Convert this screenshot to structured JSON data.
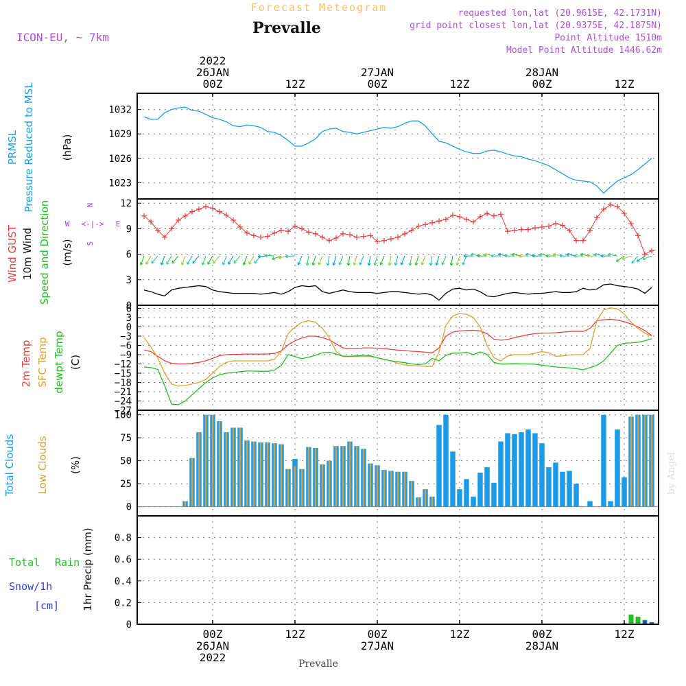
{
  "header": {
    "title": "Forecast Meteogram",
    "location": "Prevalle",
    "model": "ICON-EU, ~ 7km",
    "requested": "requested lon,lat (20.9615E, 42.1731N)",
    "gridpoint": "grid point closest lon,lat (20.9375E, 42.1875N)",
    "point_alt": "Point Altitude 1510m",
    "model_alt": "Model Point Altitude 1446.62m"
  },
  "time_axis": {
    "top": [
      {
        "h": 0,
        "lines": [
          "2022",
          "26JAN",
          "00Z"
        ]
      },
      {
        "h": 12,
        "lines": [
          "12Z"
        ]
      },
      {
        "h": 24,
        "lines": [
          "27JAN",
          "00Z"
        ]
      },
      {
        "h": 36,
        "lines": [
          "12Z"
        ]
      },
      {
        "h": 48,
        "lines": [
          "28JAN",
          "00Z"
        ]
      },
      {
        "h": 60,
        "lines": [
          "12Z"
        ]
      }
    ],
    "bottom": [
      {
        "h": 0,
        "lines": [
          "00Z",
          "26JAN",
          "2022"
        ]
      },
      {
        "h": 12,
        "lines": [
          "12Z"
        ]
      },
      {
        "h": 24,
        "lines": [
          "00Z",
          "27JAN"
        ]
      },
      {
        "h": 36,
        "lines": [
          "12Z"
        ]
      },
      {
        "h": 48,
        "lines": [
          "00Z",
          "28JAN"
        ]
      },
      {
        "h": 60,
        "lines": [
          "12Z"
        ]
      }
    ],
    "bottom_location": "Prevalle",
    "range_hours": [
      -11,
      65
    ]
  },
  "watermark": "by Angel",
  "colors": {
    "pressure": "#1e9be6",
    "gust": "#e83c3c",
    "wind": "#000000",
    "temp2m": "#e8413c",
    "sfctemp": "#e0a030",
    "dewpt": "#22c022",
    "total_clouds": "#1e9be6",
    "low_clouds": "#d6a040",
    "rain": "#22c022",
    "snow": "#3040e0",
    "compass": "#a040e0",
    "title": "#f5c070",
    "info": "#b050d8"
  },
  "chart_data": [
    {
      "type": "line",
      "panel": "pressure",
      "labels": [
        "PRMSL",
        "Pressure Reduced to MSL",
        "(hPa)"
      ],
      "ylim": [
        1021,
        1034
      ],
      "yticks": [
        1023,
        1026,
        1029,
        1032
      ],
      "x": [
        -10,
        -9,
        -8,
        -7,
        -6,
        -5,
        -4,
        -3,
        -2,
        -1,
        0,
        1,
        2,
        3,
        4,
        5,
        6,
        7,
        8,
        9,
        10,
        11,
        12,
        13,
        14,
        15,
        16,
        17,
        18,
        19,
        20,
        21,
        22,
        23,
        24,
        25,
        26,
        27,
        28,
        29,
        30,
        31,
        32,
        33,
        34,
        35,
        36,
        37,
        38,
        39,
        40,
        41,
        42,
        43,
        44,
        45,
        46,
        47,
        48,
        49,
        50,
        51,
        52,
        53,
        54,
        55,
        56,
        57,
        58,
        59,
        60,
        61,
        62,
        63,
        64
      ],
      "series": [
        {
          "values": [
            1031.1,
            1030.8,
            1030.8,
            1031.6,
            1032.0,
            1032.2,
            1032.3,
            1031.9,
            1031.8,
            1031.4,
            1031.0,
            1030.8,
            1030.5,
            1030.0,
            1029.9,
            1030.1,
            1030.0,
            1029.8,
            1029.3,
            1029.2,
            1028.8,
            1028.2,
            1027.5,
            1027.5,
            1027.9,
            1028.4,
            1029.3,
            1029.6,
            1029.7,
            1029.3,
            1029.2,
            1029.0,
            1029.2,
            1029.4,
            1029.6,
            1029.8,
            1029.7,
            1029.9,
            1030.3,
            1030.6,
            1030.6,
            1030.0,
            1029.0,
            1028.1,
            1027.9,
            1027.5,
            1027.1,
            1026.8,
            1026.6,
            1026.6,
            1026.9,
            1027.0,
            1026.8,
            1026.5,
            1026.3,
            1026.2,
            1025.9,
            1025.7,
            1025.4,
            1025.1,
            1024.6,
            1024.1,
            1023.6,
            1023.3,
            1023.2,
            1023.1,
            1022.6,
            1021.7,
            1022.5,
            1023.2,
            1023.6,
            1024.0,
            1024.6,
            1025.3,
            1026.0
          ]
        }
      ]
    },
    {
      "type": "line",
      "panel": "wind",
      "labels": [
        "Wind GUST",
        "10m Wind",
        "Speed and Direction",
        "(m/s)"
      ],
      "compass": {
        "n": "N",
        "s": "S",
        "e": "E",
        "w": "W"
      },
      "ylim": [
        0,
        12.5
      ],
      "yticks": [
        0,
        3,
        6,
        9,
        12
      ],
      "x": [
        -10,
        -9,
        -8,
        -7,
        -6,
        -5,
        -4,
        -3,
        -2,
        -1,
        0,
        1,
        2,
        3,
        4,
        5,
        6,
        7,
        8,
        9,
        10,
        11,
        12,
        13,
        14,
        15,
        16,
        17,
        18,
        19,
        20,
        21,
        22,
        23,
        24,
        25,
        26,
        27,
        28,
        29,
        30,
        31,
        32,
        33,
        34,
        35,
        36,
        37,
        38,
        39,
        40,
        41,
        42,
        43,
        44,
        45,
        46,
        47,
        48,
        49,
        50,
        51,
        52,
        53,
        54,
        55,
        56,
        57,
        58,
        59,
        60,
        61,
        62,
        63,
        64
      ],
      "series": [
        {
          "name": "gust",
          "values": [
            10.5,
            9.8,
            8.8,
            8.0,
            9.0,
            10.0,
            10.5,
            11.0,
            11.3,
            11.6,
            11.4,
            11.0,
            10.6,
            10.0,
            9.2,
            8.5,
            8.2,
            8.0,
            8.1,
            8.5,
            8.8,
            8.7,
            9.3,
            9.0,
            8.6,
            8.4,
            8.0,
            7.6,
            7.9,
            8.4,
            8.3,
            8.0,
            8.1,
            8.2,
            7.5,
            7.6,
            7.8,
            8.0,
            8.4,
            8.8,
            9.3,
            9.5,
            9.7,
            9.9,
            10.1,
            10.6,
            10.4,
            10.1,
            9.8,
            10.4,
            10.8,
            10.5,
            10.7,
            8.7,
            8.8,
            8.9,
            8.9,
            9.1,
            9.2,
            9.3,
            9.6,
            9.4,
            8.8,
            7.6,
            7.6,
            8.8,
            10.3,
            11.3,
            11.8,
            11.6,
            10.8,
            9.6,
            8.2,
            6.0,
            6.4
          ]
        },
        {
          "name": "wind10m",
          "values": [
            1.8,
            1.6,
            1.3,
            1.1,
            1.8,
            2.0,
            2.1,
            2.2,
            2.3,
            2.2,
            1.8,
            1.6,
            1.5,
            1.4,
            1.4,
            1.4,
            1.4,
            1.3,
            1.4,
            1.5,
            1.3,
            1.6,
            2.1,
            2.3,
            2.2,
            2.3,
            1.6,
            1.4,
            1.6,
            1.8,
            1.6,
            1.5,
            1.5,
            1.5,
            1.4,
            1.5,
            1.6,
            1.6,
            1.5,
            1.4,
            1.3,
            1.4,
            1.2,
            0.6,
            1.4,
            1.9,
            2.0,
            1.8,
            1.9,
            1.6,
            1.1,
            1.0,
            1.2,
            1.4,
            1.5,
            1.4,
            1.3,
            1.4,
            1.4,
            1.5,
            1.6,
            1.5,
            1.5,
            1.6,
            2.0,
            1.8,
            1.9,
            2.4,
            2.5,
            2.3,
            2.2,
            2.1,
            1.9,
            1.4,
            2.1
          ]
        }
      ]
    },
    {
      "type": "line",
      "panel": "temperature",
      "labels": [
        "2m Temp",
        "SFC Temp",
        "dewpt Temp",
        "(C)"
      ],
      "ylim": [
        -27,
        7
      ],
      "yticks": [
        6,
        3,
        0,
        -3,
        -6,
        -9,
        -12,
        -15,
        -18,
        -21,
        -24,
        -27
      ],
      "x": [
        -10,
        -9,
        -8,
        -7,
        -6,
        -5,
        -4,
        -3,
        -2,
        -1,
        0,
        1,
        2,
        3,
        4,
        5,
        6,
        7,
        8,
        9,
        10,
        11,
        12,
        13,
        14,
        15,
        16,
        17,
        18,
        19,
        20,
        21,
        22,
        23,
        24,
        25,
        26,
        27,
        28,
        29,
        30,
        31,
        32,
        33,
        34,
        35,
        36,
        37,
        38,
        39,
        40,
        41,
        42,
        43,
        44,
        45,
        46,
        47,
        48,
        49,
        50,
        51,
        52,
        53,
        54,
        55,
        56,
        57,
        58,
        59,
        60,
        61,
        62,
        63,
        64
      ],
      "series": [
        {
          "name": "2m Temp",
          "values": [
            -7.5,
            -8.0,
            -9.5,
            -11.0,
            -11.8,
            -12.0,
            -12.0,
            -11.8,
            -11.5,
            -11.0,
            -10.2,
            -9.3,
            -9.0,
            -8.9,
            -8.9,
            -8.8,
            -8.8,
            -8.8,
            -8.8,
            -8.6,
            -7.8,
            -5.8,
            -4.5,
            -3.6,
            -3.0,
            -3.0,
            -3.5,
            -4.2,
            -5.5,
            -6.8,
            -7.0,
            -7.0,
            -6.8,
            -6.8,
            -6.9,
            -7.0,
            -7.3,
            -7.5,
            -7.7,
            -7.9,
            -8.0,
            -8.2,
            -8.4,
            -6.8,
            -3.0,
            -1.7,
            -1.3,
            -1.2,
            -1.1,
            -1.3,
            -2.2,
            -4.0,
            -4.3,
            -4.1,
            -3.5,
            -3.0,
            -2.5,
            -2.2,
            -2.0,
            -2.0,
            -1.9,
            -1.7,
            -1.5,
            -1.4,
            -1.5,
            -0.5,
            2.0,
            2.3,
            2.5,
            2.2,
            1.7,
            0.9,
            0.0,
            -1.2,
            -2.8
          ]
        },
        {
          "name": "SFC Temp",
          "values": [
            -3.5,
            -6.5,
            -10.0,
            -15.0,
            -18.5,
            -19.2,
            -19.0,
            -18.5,
            -18.0,
            -17.0,
            -15.0,
            -12.8,
            -11.5,
            -11.0,
            -11.0,
            -11.0,
            -11.0,
            -11.0,
            -11.0,
            -10.5,
            -8.0,
            -2.2,
            0.0,
            1.5,
            2.0,
            1.5,
            -0.5,
            -3.5,
            -8.0,
            -9.6,
            -9.6,
            -9.6,
            -9.6,
            -9.6,
            -10.0,
            -10.6,
            -11.0,
            -11.8,
            -12.3,
            -12.6,
            -12.6,
            -12.8,
            -12.8,
            -8.2,
            0.5,
            3.5,
            4.3,
            4.1,
            3.0,
            0.0,
            -6.0,
            -10.0,
            -11.0,
            -9.4,
            -9.0,
            -9.0,
            -9.0,
            -8.5,
            -8.0,
            -8.4,
            -9.5,
            -9.4,
            -9.1,
            -9.0,
            -9.0,
            -7.0,
            2.0,
            5.5,
            6.2,
            5.8,
            4.2,
            1.5,
            -0.5,
            -2.0,
            -3.0
          ]
        },
        {
          "name": "dewpt Temp",
          "values": [
            -13.0,
            -13.2,
            -13.8,
            -19.0,
            -25.0,
            -25.2,
            -24.0,
            -22.0,
            -20.0,
            -18.0,
            -16.5,
            -15.5,
            -15.0,
            -14.8,
            -14.5,
            -14.3,
            -14.3,
            -14.4,
            -14.4,
            -14.0,
            -12.5,
            -9.0,
            -9.6,
            -10.3,
            -9.8,
            -9.2,
            -8.4,
            -8.2,
            -8.8,
            -9.5,
            -9.5,
            -9.4,
            -9.2,
            -9.4,
            -10.0,
            -10.5,
            -11.0,
            -11.3,
            -11.6,
            -12.0,
            -12.2,
            -12.0,
            -10.2,
            -11.0,
            -9.2,
            -8.5,
            -8.5,
            -8.2,
            -9.0,
            -8.1,
            -8.9,
            -11.5,
            -12.0,
            -12.0,
            -11.9,
            -12.0,
            -12.0,
            -12.1,
            -12.4,
            -12.7,
            -13.0,
            -13.1,
            -13.3,
            -13.5,
            -13.9,
            -13.2,
            -12.5,
            -11.0,
            -8.5,
            -6.0,
            -5.3,
            -5.2,
            -5.0,
            -4.5,
            -3.8
          ]
        }
      ]
    },
    {
      "type": "bar",
      "panel": "clouds",
      "labels": [
        "Total Clouds",
        "Low Clouds",
        "(%)"
      ],
      "ylim": [
        -10,
        105
      ],
      "yticks": [
        0,
        25,
        50,
        75,
        100
      ],
      "x": [
        -10,
        -9,
        -8,
        -7,
        -6,
        -5,
        -4,
        -3,
        -2,
        -1,
        0,
        1,
        2,
        3,
        4,
        5,
        6,
        7,
        8,
        9,
        10,
        11,
        12,
        13,
        14,
        15,
        16,
        17,
        18,
        19,
        20,
        21,
        22,
        23,
        24,
        25,
        26,
        27,
        28,
        29,
        30,
        31,
        32,
        33,
        34,
        35,
        36,
        37,
        38,
        39,
        40,
        41,
        42,
        43,
        44,
        45,
        46,
        47,
        48,
        49,
        50,
        51,
        52,
        53,
        54,
        55,
        56,
        57,
        58,
        59,
        60,
        61,
        62,
        63,
        64
      ],
      "series": [
        {
          "name": "Total Clouds",
          "values": [
            0,
            0,
            0,
            0,
            0,
            0,
            6,
            53,
            81,
            100,
            100,
            93,
            81,
            86,
            86,
            72,
            71,
            70,
            70,
            69,
            68,
            41,
            52,
            41,
            65,
            64,
            46,
            50,
            66,
            66,
            71,
            66,
            63,
            47,
            45,
            40,
            39,
            38,
            38,
            28,
            10,
            19,
            11,
            89,
            100,
            60,
            19,
            30,
            11,
            37,
            43,
            26,
            71,
            80,
            79,
            81,
            84,
            80,
            69,
            43,
            48,
            38,
            39,
            25,
            0,
            6,
            0,
            100,
            6,
            84,
            32,
            98,
            100,
            100,
            100
          ]
        },
        {
          "name": "Low Clouds",
          "values": [
            0,
            0,
            0,
            0,
            0,
            0,
            6,
            53,
            81,
            100,
            100,
            93,
            81,
            86,
            86,
            72,
            71,
            70,
            70,
            69,
            68,
            41,
            44,
            41,
            65,
            64,
            46,
            50,
            66,
            66,
            71,
            66,
            63,
            47,
            45,
            40,
            39,
            38,
            38,
            28,
            10,
            19,
            11,
            0,
            0,
            0,
            0,
            0,
            0,
            0,
            0,
            0,
            0,
            0,
            0,
            0,
            0,
            0,
            0,
            0,
            0,
            0,
            0,
            0,
            0,
            0,
            0,
            0,
            0,
            0,
            0,
            98,
            100,
            100,
            100
          ]
        }
      ]
    },
    {
      "type": "bar",
      "panel": "precip",
      "labels": [
        "Total",
        "Rain",
        "Snow/1h",
        "[cm]",
        "1hr Precip (mm)"
      ],
      "ylim": [
        0,
        1.0
      ],
      "yticks": [
        0,
        0.2,
        0.4,
        0.6,
        0.8
      ],
      "x": [
        59,
        60,
        61,
        62,
        63,
        64
      ],
      "series": [
        {
          "name": "Rain",
          "values": [
            0.003,
            0.01,
            0.09,
            0.07,
            0.04,
            0.02
          ]
        },
        {
          "name": "Snow/1h",
          "values": [
            0,
            0,
            0,
            0,
            0.035,
            0.015
          ]
        }
      ]
    }
  ]
}
